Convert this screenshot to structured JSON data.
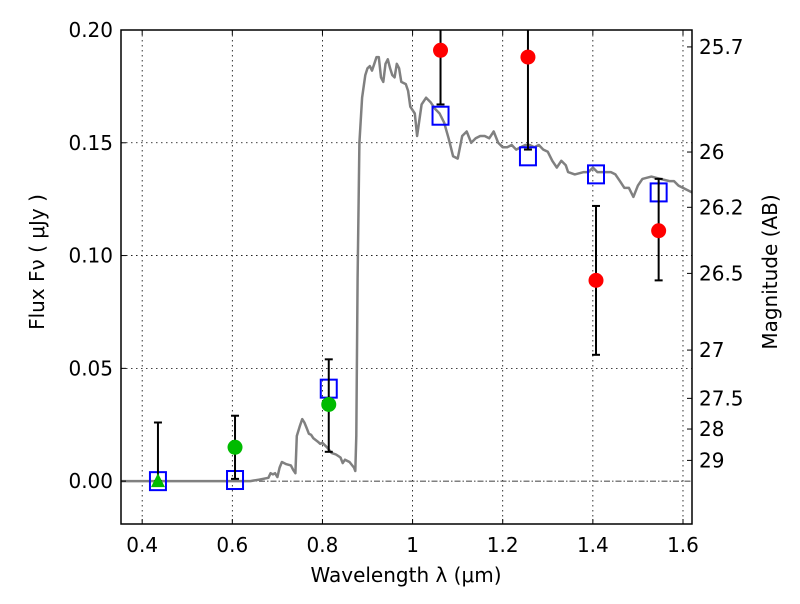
{
  "chart_data": {
    "type": "scatter",
    "title": "",
    "xlabel": "Wavelength  λ (μm)",
    "ylabel": "Flux  Fν  ( μJy )",
    "y2label": "Magnitude (AB)",
    "xlim": [
      0.353,
      1.62
    ],
    "ylim": [
      -0.019,
      0.2
    ],
    "grid": true,
    "legend": "none",
    "x_ticks": [
      0.4,
      0.6,
      0.8,
      1.0,
      1.2,
      1.4,
      1.6
    ],
    "x_tick_labels": [
      "0.4",
      "0.6",
      "0.8",
      "1",
      "1.2",
      "1.4",
      "1.6"
    ],
    "y_ticks": [
      0.0,
      0.05,
      0.1,
      0.15,
      0.2
    ],
    "y_tick_labels": [
      "0.00",
      "0.05",
      "0.10",
      "0.15",
      "0.20"
    ],
    "y2_ticks": [
      {
        "label": "25.7",
        "flux": 0.1925
      },
      {
        "label": "26",
        "flux": 0.1459
      },
      {
        "label": "26.2",
        "flux": 0.1214
      },
      {
        "label": "26.5",
        "flux": 0.0921
      },
      {
        "label": "27",
        "flux": 0.0581
      },
      {
        "label": "27.5",
        "flux": 0.0367
      },
      {
        "label": "28",
        "flux": 0.0231
      },
      {
        "label": "29",
        "flux": 0.0092
      }
    ],
    "zero_line": 0.0,
    "series": [
      {
        "name": "model-spectrum",
        "kind": "line",
        "color": "#808080",
        "points": [
          [
            0.353,
            0.0
          ],
          [
            0.64,
            0.0
          ],
          [
            0.66,
            0.0007
          ],
          [
            0.68,
            0.0015
          ],
          [
            0.685,
            0.0035
          ],
          [
            0.69,
            0.003
          ],
          [
            0.695,
            0.0035
          ],
          [
            0.7,
            0.0018
          ],
          [
            0.705,
            0.006
          ],
          [
            0.71,
            0.0085
          ],
          [
            0.72,
            0.0075
          ],
          [
            0.73,
            0.007
          ],
          [
            0.735,
            0.005
          ],
          [
            0.74,
            0.0035
          ],
          [
            0.743,
            0.02
          ],
          [
            0.75,
            0.0245
          ],
          [
            0.755,
            0.0275
          ],
          [
            0.76,
            0.026
          ],
          [
            0.765,
            0.0235
          ],
          [
            0.77,
            0.021
          ],
          [
            0.775,
            0.0205
          ],
          [
            0.78,
            0.019
          ],
          [
            0.79,
            0.0175
          ],
          [
            0.795,
            0.0165
          ],
          [
            0.8,
            0.017
          ],
          [
            0.81,
            0.015
          ],
          [
            0.82,
            0.0125
          ],
          [
            0.83,
            0.0118
          ],
          [
            0.84,
            0.0105
          ],
          [
            0.845,
            0.008
          ],
          [
            0.85,
            0.0095
          ],
          [
            0.86,
            0.0085
          ],
          [
            0.87,
            0.006
          ],
          [
            0.873,
            0.0045
          ],
          [
            0.875,
            0.02
          ],
          [
            0.878,
            0.09
          ],
          [
            0.882,
            0.15
          ],
          [
            0.888,
            0.17
          ],
          [
            0.895,
            0.18
          ],
          [
            0.9,
            0.183
          ],
          [
            0.905,
            0.184
          ],
          [
            0.91,
            0.182
          ],
          [
            0.915,
            0.185
          ],
          [
            0.92,
            0.188
          ],
          [
            0.925,
            0.188
          ],
          [
            0.93,
            0.179
          ],
          [
            0.935,
            0.177
          ],
          [
            0.94,
            0.185
          ],
          [
            0.945,
            0.187
          ],
          [
            0.95,
            0.183
          ],
          [
            0.955,
            0.18
          ],
          [
            0.96,
            0.179
          ],
          [
            0.965,
            0.185
          ],
          [
            0.97,
            0.183
          ],
          [
            0.975,
            0.177
          ],
          [
            0.985,
            0.176
          ],
          [
            0.99,
            0.173
          ],
          [
            0.995,
            0.166
          ],
          [
            1.005,
            0.163
          ],
          [
            1.01,
            0.153
          ],
          [
            1.02,
            0.167
          ],
          [
            1.03,
            0.17
          ],
          [
            1.04,
            0.168
          ],
          [
            1.05,
            0.165
          ],
          [
            1.06,
            0.163
          ],
          [
            1.07,
            0.159
          ],
          [
            1.08,
            0.152
          ],
          [
            1.09,
            0.144
          ],
          [
            1.1,
            0.143
          ],
          [
            1.11,
            0.153
          ],
          [
            1.12,
            0.155
          ],
          [
            1.13,
            0.15
          ],
          [
            1.14,
            0.152
          ],
          [
            1.15,
            0.153
          ],
          [
            1.16,
            0.153
          ],
          [
            1.17,
            0.152
          ],
          [
            1.18,
            0.155
          ],
          [
            1.19,
            0.15
          ],
          [
            1.2,
            0.148
          ],
          [
            1.21,
            0.148
          ],
          [
            1.22,
            0.149
          ],
          [
            1.23,
            0.147
          ],
          [
            1.24,
            0.148
          ],
          [
            1.25,
            0.149
          ],
          [
            1.26,
            0.149
          ],
          [
            1.27,
            0.148
          ],
          [
            1.28,
            0.149
          ],
          [
            1.29,
            0.147
          ],
          [
            1.3,
            0.146
          ],
          [
            1.31,
            0.142
          ],
          [
            1.32,
            0.139
          ],
          [
            1.33,
            0.142
          ],
          [
            1.34,
            0.14
          ],
          [
            1.345,
            0.137
          ],
          [
            1.36,
            0.136
          ],
          [
            1.38,
            0.137
          ],
          [
            1.39,
            0.137
          ],
          [
            1.4,
            0.139
          ],
          [
            1.41,
            0.137
          ],
          [
            1.42,
            0.137
          ],
          [
            1.44,
            0.137
          ],
          [
            1.45,
            0.136
          ],
          [
            1.46,
            0.133
          ],
          [
            1.47,
            0.13
          ],
          [
            1.48,
            0.13
          ],
          [
            1.49,
            0.126
          ],
          [
            1.5,
            0.131
          ],
          [
            1.51,
            0.134
          ],
          [
            1.53,
            0.135
          ],
          [
            1.55,
            0.134
          ],
          [
            1.57,
            0.133
          ],
          [
            1.58,
            0.133
          ],
          [
            1.59,
            0.131
          ],
          [
            1.6,
            0.13
          ],
          [
            1.62,
            0.128
          ]
        ]
      },
      {
        "name": "model-photometry",
        "kind": "open-square",
        "color": "#0000ff",
        "x": [
          0.435,
          0.606,
          0.814,
          1.062,
          1.256,
          1.407,
          1.546
        ],
        "y": [
          0.0,
          0.0005,
          0.041,
          0.162,
          0.144,
          0.136,
          0.128
        ]
      },
      {
        "name": "detections",
        "kind": "filled-circle",
        "color": "#ff0000",
        "x": [
          1.062,
          1.256,
          1.407,
          1.546
        ],
        "y": [
          0.191,
          0.188,
          0.089,
          0.111
        ],
        "yerr_low": [
          0.167,
          0.147,
          0.056,
          0.089
        ],
        "yerr_high": [
          0.21,
          0.21,
          0.122,
          0.134
        ]
      },
      {
        "name": "low-significance",
        "kind": "filled-circle",
        "color": "#00bb00",
        "x": [
          0.606,
          0.814
        ],
        "y": [
          0.015,
          0.034
        ],
        "yerr_low": [
          0.001,
          0.013
        ],
        "yerr_high": [
          0.029,
          0.054
        ]
      },
      {
        "name": "upper-limit",
        "kind": "triangle",
        "color": "#00bb00",
        "x": [
          0.435
        ],
        "y": [
          0.0
        ],
        "yerr_low": [
          0.0
        ],
        "yerr_high": [
          0.026
        ]
      }
    ]
  }
}
